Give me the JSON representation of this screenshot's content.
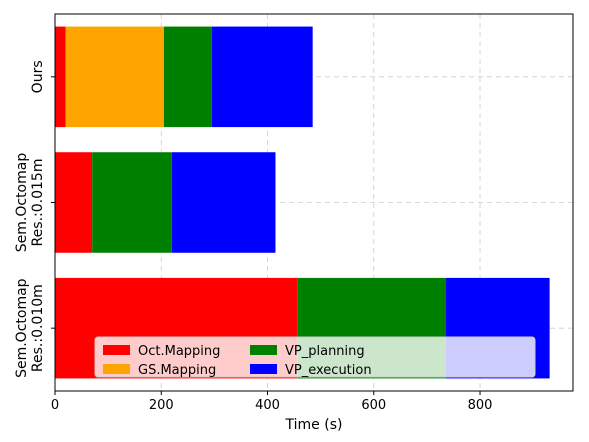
{
  "chart_data": {
    "type": "bar",
    "orientation": "horizontal",
    "stacked": true,
    "xlabel": "Time (s)",
    "ylabel": "",
    "xlim": [
      0,
      975
    ],
    "xticks": [
      0,
      200,
      400,
      600,
      800
    ],
    "grid": true,
    "legend_position": "lower-center",
    "categories": [
      [
        "Ours"
      ],
      [
        "Sem.Octomap",
        "Res.:0.015m"
      ],
      [
        "Sem.Octomap",
        "Res.:0.010m"
      ]
    ],
    "series": [
      {
        "name": "Oct.Mapping",
        "color": "#ff0000",
        "values": [
          20,
          70,
          456
        ]
      },
      {
        "name": "GS.Mapping",
        "color": "#ffa500",
        "values": [
          185,
          0,
          0
        ]
      },
      {
        "name": "VP_planning",
        "color": "#008000",
        "values": [
          90,
          150,
          280
        ]
      },
      {
        "name": "VP_execution",
        "color": "#0000ff",
        "values": [
          190,
          195,
          195
        ]
      }
    ]
  }
}
